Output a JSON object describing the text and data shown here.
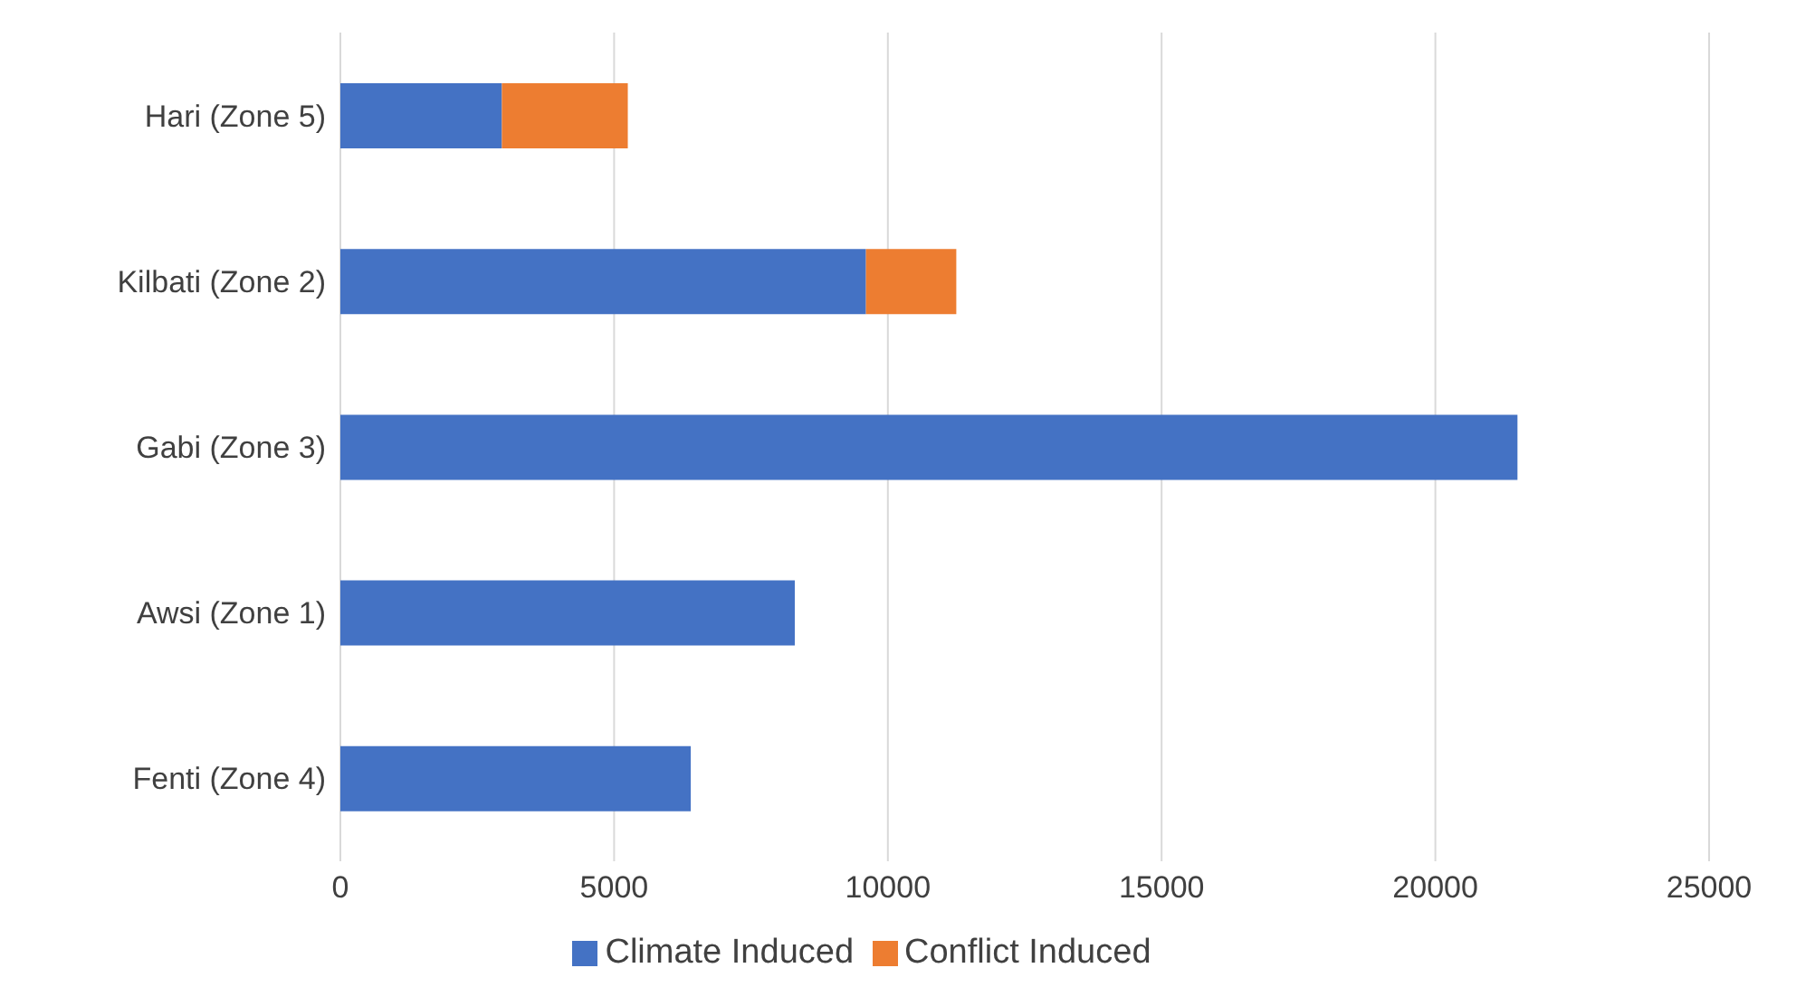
{
  "chart_data": {
    "type": "bar",
    "orientation": "horizontal",
    "stacked": true,
    "categories": [
      "Hari (Zone 5)",
      "Kilbati (Zone 2)",
      "Gabi (Zone 3)",
      "Awsi (Zone 1)",
      "Fenti (Zone 4)"
    ],
    "series": [
      {
        "name": "Climate Induced",
        "color": "#4472c4",
        "values": [
          2950,
          9600,
          21500,
          8300,
          6400
        ]
      },
      {
        "name": "Conflict Induced",
        "color": "#ed7d31",
        "values": [
          2300,
          1650,
          null,
          null,
          null
        ]
      }
    ],
    "xlim": [
      0,
      25000
    ],
    "xticks": [
      0,
      5000,
      10000,
      15000,
      20000,
      25000
    ],
    "grid": "x",
    "legend": "bottom"
  }
}
